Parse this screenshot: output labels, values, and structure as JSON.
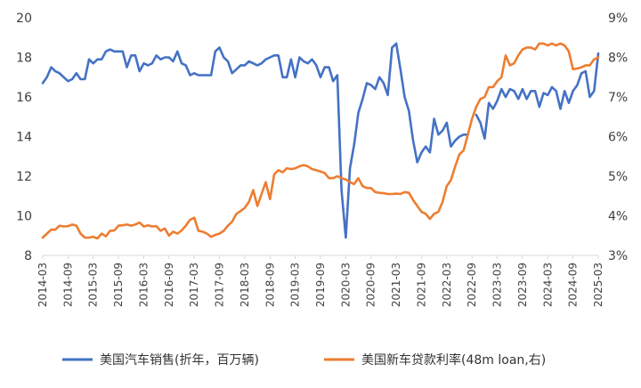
{
  "chart_data": {
    "type": "line",
    "x_axis": {
      "labels": [
        "2014-03",
        "2014-09",
        "2015-03",
        "2015-09",
        "2016-03",
        "2016-09",
        "2017-03",
        "2017-09",
        "2018-03",
        "2018-09",
        "2019-03",
        "2019-09",
        "2020-03",
        "2020-09",
        "2021-03",
        "2021-09",
        "2022-03",
        "2022-09",
        "2023-03",
        "2023-09",
        "2024-03",
        "2024-09",
        "2025-03"
      ]
    },
    "y_left": {
      "min": 8,
      "max": 20,
      "ticks": [
        "8",
        "10",
        "12",
        "14",
        "16",
        "18",
        "20"
      ]
    },
    "y_right": {
      "min": 3,
      "max": 9,
      "ticks": [
        "3%",
        "4%",
        "5%",
        "6%",
        "7%",
        "8%",
        "9%"
      ]
    },
    "series": [
      {
        "name": "美国汽车销售(折年，百万辆)",
        "axis": "left",
        "color": "#4472C4",
        "points": [
          [
            "2014-03",
            16.7
          ],
          [
            "2014-04",
            17.0
          ],
          [
            "2014-05",
            17.5
          ],
          [
            "2014-06",
            17.3
          ],
          [
            "2014-07",
            17.2
          ],
          [
            "2014-08",
            17.0
          ],
          [
            "2014-09",
            16.8
          ],
          [
            "2014-10",
            16.9
          ],
          [
            "2014-11",
            17.2
          ],
          [
            "2014-12",
            16.9
          ],
          [
            "2015-01",
            16.9
          ],
          [
            "2015-02",
            17.9
          ],
          [
            "2015-03",
            17.7
          ],
          [
            "2015-04",
            17.9
          ],
          [
            "2015-05",
            17.9
          ],
          [
            "2015-06",
            18.3
          ],
          [
            "2015-07",
            18.4
          ],
          [
            "2015-08",
            18.3
          ],
          [
            "2015-09",
            18.3
          ],
          [
            "2015-10",
            18.3
          ],
          [
            "2015-11",
            17.5
          ],
          [
            "2015-12",
            18.1
          ],
          [
            "2016-01",
            18.1
          ],
          [
            "2016-02",
            17.3
          ],
          [
            "2016-03",
            17.7
          ],
          [
            "2016-04",
            17.6
          ],
          [
            "2016-05",
            17.7
          ],
          [
            "2016-06",
            18.1
          ],
          [
            "2016-07",
            17.9
          ],
          [
            "2016-08",
            18.0
          ],
          [
            "2016-09",
            18.0
          ],
          [
            "2016-10",
            17.8
          ],
          [
            "2016-11",
            18.3
          ],
          [
            "2016-12",
            17.7
          ],
          [
            "2017-01",
            17.6
          ],
          [
            "2017-02",
            17.1
          ],
          [
            "2017-03",
            17.2
          ],
          [
            "2017-04",
            17.1
          ],
          [
            "2017-05",
            17.1
          ],
          [
            "2017-06",
            17.1
          ],
          [
            "2017-07",
            17.1
          ],
          [
            "2017-08",
            18.3
          ],
          [
            "2017-09",
            18.5
          ],
          [
            "2017-10",
            18.0
          ],
          [
            "2017-11",
            17.8
          ],
          [
            "2017-12",
            17.2
          ],
          [
            "2018-01",
            17.4
          ],
          [
            "2018-02",
            17.6
          ],
          [
            "2018-03",
            17.6
          ],
          [
            "2018-04",
            17.8
          ],
          [
            "2018-05",
            17.7
          ],
          [
            "2018-06",
            17.6
          ],
          [
            "2018-07",
            17.7
          ],
          [
            "2018-08",
            17.9
          ],
          [
            "2018-09",
            18.0
          ],
          [
            "2018-10",
            18.1
          ],
          [
            "2018-11",
            18.1
          ],
          [
            "2018-12",
            17.0
          ],
          [
            "2019-01",
            17.0
          ],
          [
            "2019-02",
            17.9
          ],
          [
            "2019-03",
            17.0
          ],
          [
            "2019-04",
            18.0
          ],
          [
            "2019-05",
            17.8
          ],
          [
            "2019-06",
            17.7
          ],
          [
            "2019-07",
            17.9
          ],
          [
            "2019-08",
            17.6
          ],
          [
            "2019-09",
            17.0
          ],
          [
            "2019-10",
            17.5
          ],
          [
            "2019-11",
            17.5
          ],
          [
            "2019-12",
            16.8
          ],
          [
            "2020-01",
            17.1
          ],
          [
            "2020-02",
            11.3
          ],
          [
            "2020-03",
            8.9
          ],
          [
            "2020-04",
            12.4
          ],
          [
            "2020-05",
            13.6
          ],
          [
            "2020-06",
            15.2
          ],
          [
            "2020-07",
            15.9
          ],
          [
            "2020-08",
            16.7
          ],
          [
            "2020-09",
            16.6
          ],
          [
            "2020-10",
            16.4
          ],
          [
            "2020-11",
            17.0
          ],
          [
            "2020-12",
            16.7
          ],
          [
            "2021-01",
            16.1
          ],
          [
            "2021-02",
            18.5
          ],
          [
            "2021-03",
            18.7
          ],
          [
            "2021-04",
            17.4
          ],
          [
            "2021-05",
            16.0
          ],
          [
            "2021-06",
            15.3
          ],
          [
            "2021-07",
            13.8
          ],
          [
            "2021-08",
            12.7
          ],
          [
            "2021-09",
            13.2
          ],
          [
            "2021-10",
            13.5
          ],
          [
            "2021-11",
            13.2
          ],
          [
            "2021-12",
            14.9
          ],
          [
            "2022-01",
            14.1
          ],
          [
            "2022-02",
            14.3
          ],
          [
            "2022-03",
            14.7
          ],
          [
            "2022-04",
            13.5
          ],
          [
            "2022-05",
            13.8
          ],
          [
            "2022-06",
            14.0
          ],
          [
            "2022-07",
            14.1
          ],
          [
            "2022-08",
            14.1
          ],
          [
            "2022-09",
            null
          ],
          [
            "2022-10",
            15.1
          ],
          [
            "2022-11",
            14.7
          ],
          [
            "2022-12",
            13.9
          ],
          [
            "2023-01",
            15.7
          ],
          [
            "2023-02",
            15.4
          ],
          [
            "2023-03",
            15.8
          ],
          [
            "2023-04",
            16.4
          ],
          [
            "2023-05",
            16.0
          ],
          [
            "2023-06",
            16.4
          ],
          [
            "2023-07",
            16.3
          ],
          [
            "2023-08",
            15.9
          ],
          [
            "2023-09",
            16.4
          ],
          [
            "2023-10",
            15.9
          ],
          [
            "2023-11",
            16.3
          ],
          [
            "2023-12",
            16.3
          ],
          [
            "2024-01",
            15.5
          ],
          [
            "2024-02",
            16.2
          ],
          [
            "2024-03",
            16.1
          ],
          [
            "2024-04",
            16.5
          ],
          [
            "2024-05",
            16.3
          ],
          [
            "2024-06",
            15.4
          ],
          [
            "2024-07",
            16.3
          ],
          [
            "2024-08",
            15.7
          ],
          [
            "2024-09",
            16.3
          ],
          [
            "2024-10",
            16.6
          ],
          [
            "2024-11",
            17.2
          ],
          [
            "2024-12",
            17.3
          ],
          [
            "2025-01",
            16.0
          ],
          [
            "2025-02",
            16.3
          ],
          [
            "2025-03",
            18.2
          ]
        ]
      },
      {
        "name": "美国新车贷款利率(48m loan,右)",
        "axis": "right",
        "color": "#ED7D31",
        "points": [
          [
            "2014-03",
            3.45
          ],
          [
            "2014-04",
            3.55
          ],
          [
            "2014-05",
            3.65
          ],
          [
            "2014-06",
            3.65
          ],
          [
            "2014-07",
            3.75
          ],
          [
            "2014-08",
            3.73
          ],
          [
            "2014-09",
            3.74
          ],
          [
            "2014-10",
            3.78
          ],
          [
            "2014-11",
            3.75
          ],
          [
            "2014-12",
            3.55
          ],
          [
            "2015-01",
            3.45
          ],
          [
            "2015-02",
            3.45
          ],
          [
            "2015-03",
            3.47
          ],
          [
            "2015-04",
            3.43
          ],
          [
            "2015-05",
            3.55
          ],
          [
            "2015-06",
            3.48
          ],
          [
            "2015-07",
            3.62
          ],
          [
            "2015-08",
            3.63
          ],
          [
            "2015-09",
            3.75
          ],
          [
            "2015-10",
            3.76
          ],
          [
            "2015-11",
            3.78
          ],
          [
            "2015-12",
            3.75
          ],
          [
            "2016-01",
            3.78
          ],
          [
            "2016-02",
            3.83
          ],
          [
            "2016-03",
            3.73
          ],
          [
            "2016-04",
            3.76
          ],
          [
            "2016-05",
            3.73
          ],
          [
            "2016-06",
            3.74
          ],
          [
            "2016-07",
            3.62
          ],
          [
            "2016-08",
            3.68
          ],
          [
            "2016-09",
            3.5
          ],
          [
            "2016-10",
            3.6
          ],
          [
            "2016-11",
            3.55
          ],
          [
            "2016-12",
            3.63
          ],
          [
            "2017-01",
            3.75
          ],
          [
            "2017-02",
            3.9
          ],
          [
            "2017-03",
            3.95
          ],
          [
            "2017-04",
            3.62
          ],
          [
            "2017-05",
            3.6
          ],
          [
            "2017-06",
            3.55
          ],
          [
            "2017-07",
            3.47
          ],
          [
            "2017-08",
            3.52
          ],
          [
            "2017-09",
            3.55
          ],
          [
            "2017-10",
            3.62
          ],
          [
            "2017-11",
            3.75
          ],
          [
            "2017-12",
            3.85
          ],
          [
            "2018-01",
            4.05
          ],
          [
            "2018-02",
            4.12
          ],
          [
            "2018-03",
            4.2
          ],
          [
            "2018-04",
            4.35
          ],
          [
            "2018-05",
            4.65
          ],
          [
            "2018-06",
            4.25
          ],
          [
            "2018-07",
            4.55
          ],
          [
            "2018-08",
            4.85
          ],
          [
            "2018-09",
            4.42
          ],
          [
            "2018-10",
            5.05
          ],
          [
            "2018-11",
            5.15
          ],
          [
            "2018-12",
            5.1
          ],
          [
            "2019-01",
            5.2
          ],
          [
            "2019-02",
            5.18
          ],
          [
            "2019-03",
            5.2
          ],
          [
            "2019-04",
            5.25
          ],
          [
            "2019-05",
            5.28
          ],
          [
            "2019-06",
            5.25
          ],
          [
            "2019-07",
            5.18
          ],
          [
            "2019-08",
            5.15
          ],
          [
            "2019-09",
            5.12
          ],
          [
            "2019-10",
            5.08
          ],
          [
            "2019-11",
            4.95
          ],
          [
            "2019-12",
            4.95
          ],
          [
            "2020-01",
            5.0
          ],
          [
            "2020-02",
            4.95
          ],
          [
            "2020-03",
            4.92
          ],
          [
            "2020-04",
            4.85
          ],
          [
            "2020-05",
            4.8
          ],
          [
            "2020-06",
            4.95
          ],
          [
            "2020-07",
            4.75
          ],
          [
            "2020-08",
            4.7
          ],
          [
            "2020-09",
            4.7
          ],
          [
            "2020-10",
            4.6
          ],
          [
            "2020-11",
            4.58
          ],
          [
            "2020-12",
            4.57
          ],
          [
            "2021-01",
            4.55
          ],
          [
            "2021-02",
            4.55
          ],
          [
            "2021-03",
            4.56
          ],
          [
            "2021-04",
            4.55
          ],
          [
            "2021-05",
            4.6
          ],
          [
            "2021-06",
            4.58
          ],
          [
            "2021-07",
            4.4
          ],
          [
            "2021-08",
            4.25
          ],
          [
            "2021-09",
            4.1
          ],
          [
            "2021-10",
            4.05
          ],
          [
            "2021-11",
            3.92
          ],
          [
            "2021-12",
            4.05
          ],
          [
            "2022-01",
            4.1
          ],
          [
            "2022-02",
            4.35
          ],
          [
            "2022-03",
            4.75
          ],
          [
            "2022-04",
            4.9
          ],
          [
            "2022-05",
            5.25
          ],
          [
            "2022-06",
            5.55
          ],
          [
            "2022-07",
            5.65
          ],
          [
            "2022-08",
            6.05
          ],
          [
            "2022-09",
            6.45
          ],
          [
            "2022-10",
            6.75
          ],
          [
            "2022-11",
            6.95
          ],
          [
            "2022-12",
            7.0
          ],
          [
            "2023-01",
            7.25
          ],
          [
            "2023-02",
            7.25
          ],
          [
            "2023-03",
            7.4
          ],
          [
            "2023-04",
            7.5
          ],
          [
            "2023-05",
            8.05
          ],
          [
            "2023-06",
            7.8
          ],
          [
            "2023-07",
            7.85
          ],
          [
            "2023-08",
            8.05
          ],
          [
            "2023-09",
            8.2
          ],
          [
            "2023-10",
            8.25
          ],
          [
            "2023-11",
            8.25
          ],
          [
            "2023-12",
            8.2
          ],
          [
            "2024-01",
            8.35
          ],
          [
            "2024-02",
            8.35
          ],
          [
            "2024-03",
            8.3
          ],
          [
            "2024-04",
            8.35
          ],
          [
            "2024-05",
            8.3
          ],
          [
            "2024-06",
            8.35
          ],
          [
            "2024-07",
            8.3
          ],
          [
            "2024-08",
            8.15
          ],
          [
            "2024-09",
            7.7
          ],
          [
            "2024-10",
            7.72
          ],
          [
            "2024-11",
            7.75
          ],
          [
            "2024-12",
            7.8
          ],
          [
            "2025-01",
            7.8
          ],
          [
            "2025-02",
            7.95
          ],
          [
            "2025-03",
            8.0
          ]
        ]
      }
    ],
    "legend": {
      "position": "bottom",
      "items": [
        "美国汽车销售(折年，百万辆)",
        "美国新车贷款利率(48m loan,右)"
      ]
    },
    "grid": false
  }
}
